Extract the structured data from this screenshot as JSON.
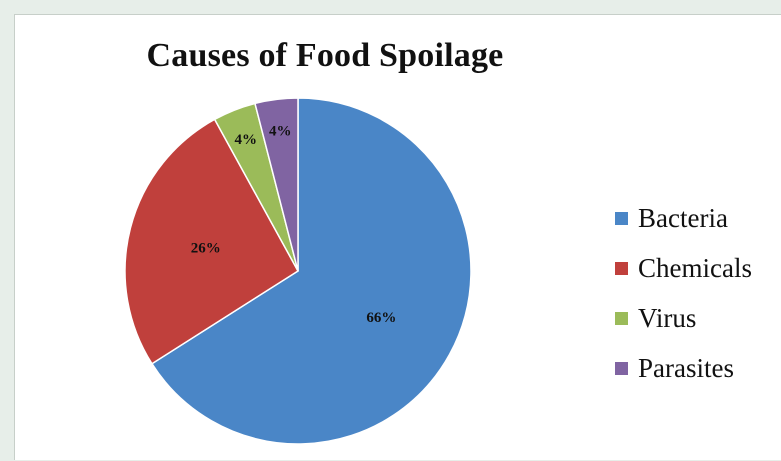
{
  "chart_data": {
    "type": "pie",
    "title": "Causes of Food Spoilage",
    "categories": [
      "Bacteria",
      "Chemicals",
      "Virus",
      "Parasites"
    ],
    "values": [
      66,
      26,
      4,
      4
    ],
    "data_labels": [
      "66%",
      "26%",
      "4%",
      "4%"
    ],
    "colors": [
      "#4a86c7",
      "#c0403c",
      "#9bbb59",
      "#8064a2"
    ],
    "legend": "right"
  }
}
